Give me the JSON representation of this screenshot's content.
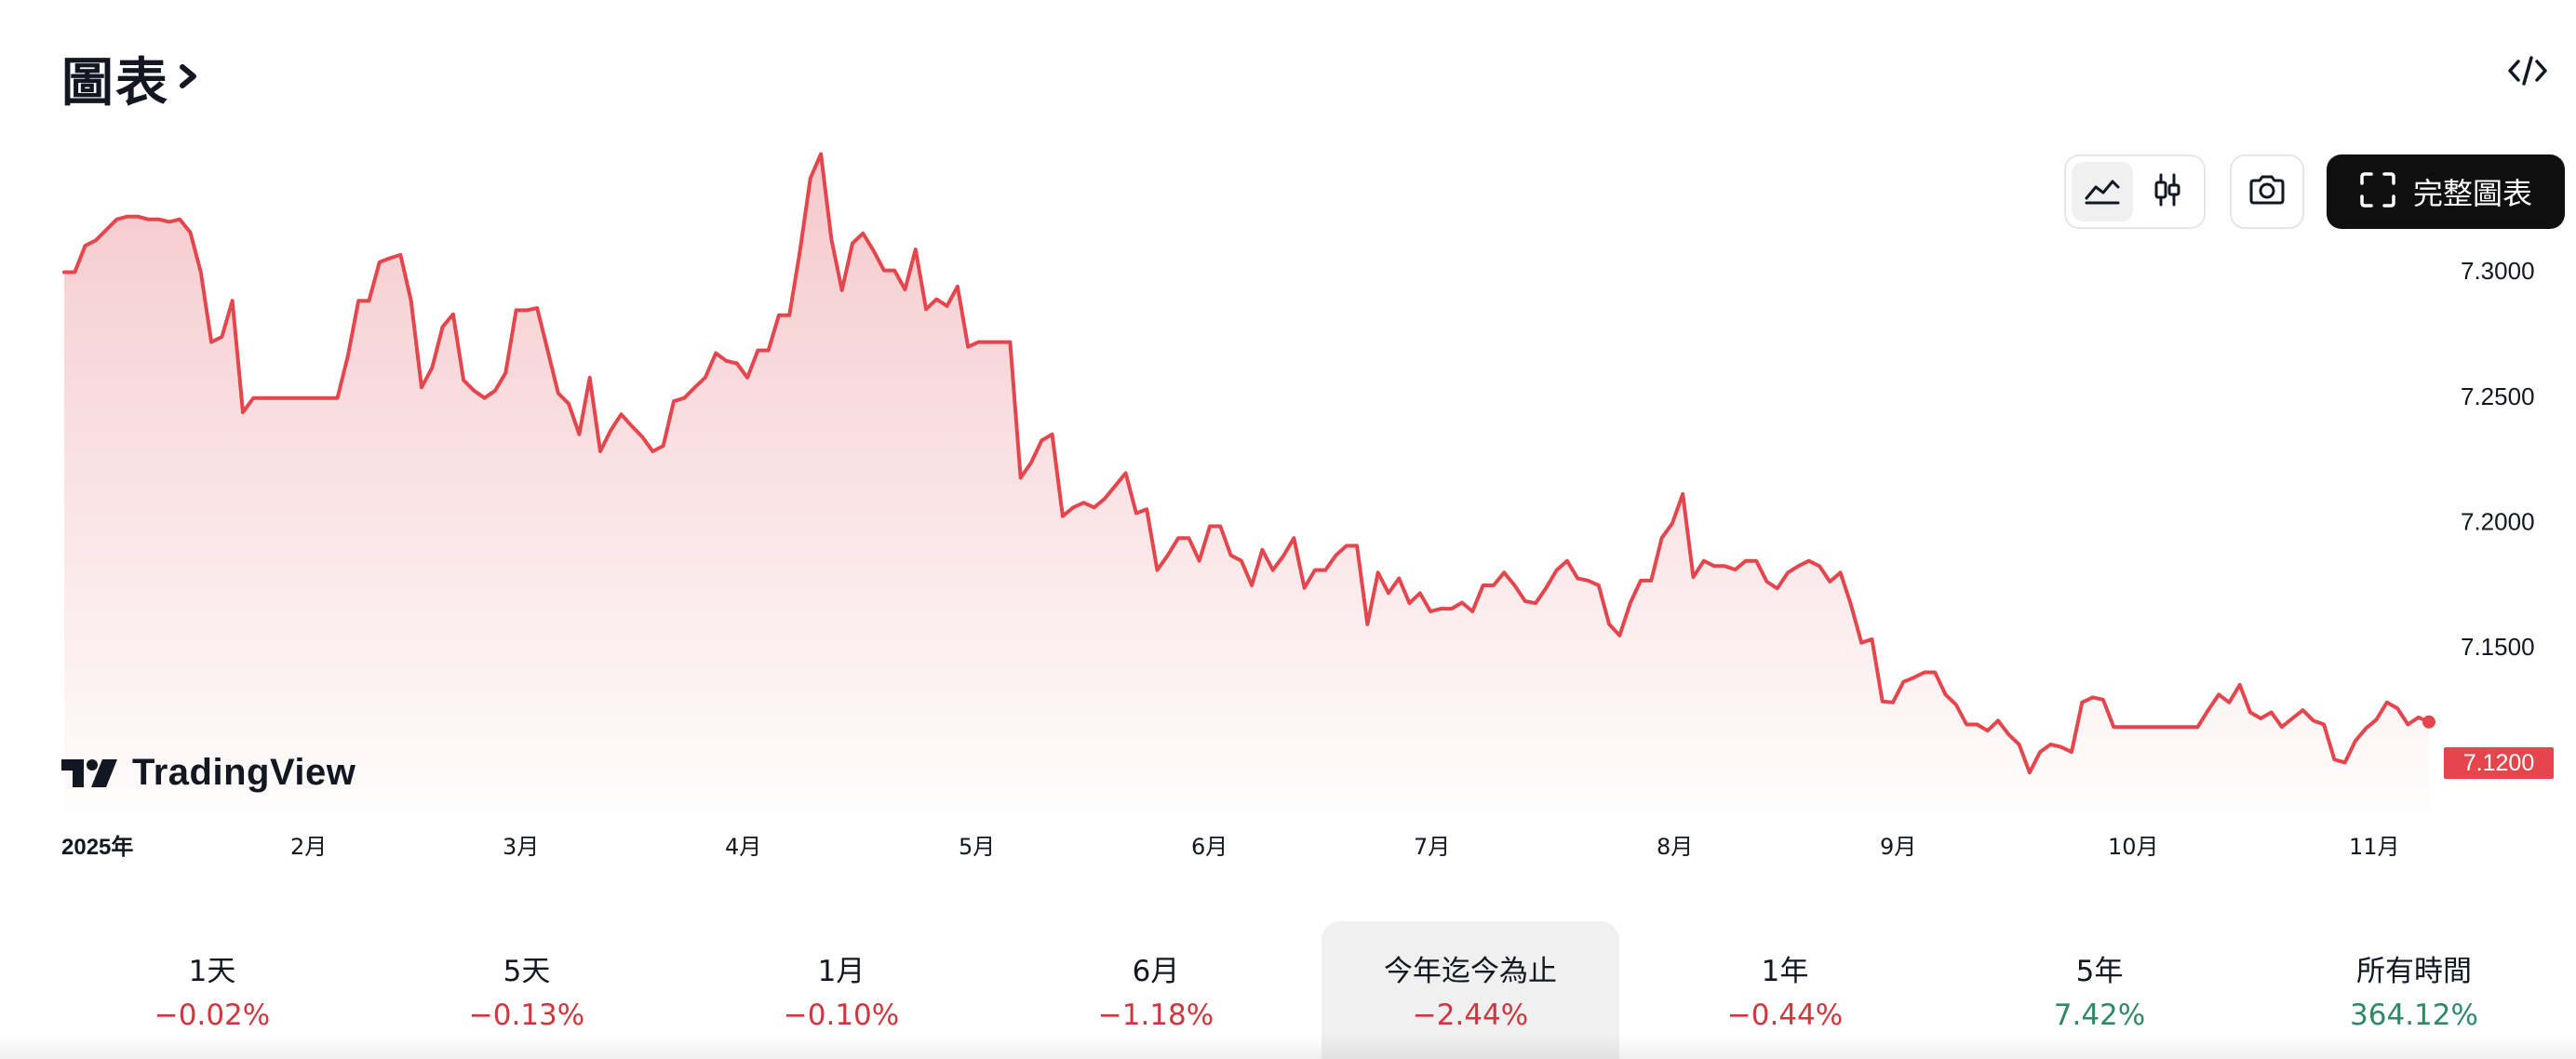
{
  "header": {
    "title": "圖表"
  },
  "toolbar": {
    "full_chart_label": "完整圖表"
  },
  "icons": {
    "title_chevron": "chevron-right-icon",
    "embed": "code-icon",
    "area_chart": "area-chart-icon",
    "candles": "candlestick-icon",
    "snapshot": "camera-icon",
    "full_chart": "fullscreen-icon"
  },
  "colors": {
    "line": "#e5454c",
    "fill_top": "#f5c9cc",
    "negative": "#d0363d",
    "positive": "#2e8a66",
    "button_dark": "#0f0f0f"
  },
  "branding": {
    "logo_text": "TradingView"
  },
  "chart_data": {
    "type": "area",
    "x_label": "",
    "y_label": "",
    "ylim": [
      7.085,
      7.345
    ],
    "x_ticks": [
      "2025年",
      "2月",
      "3月",
      "4月",
      "5月",
      "6月",
      "7月",
      "8月",
      "9月",
      "10月",
      "11月"
    ],
    "y_ticks": [
      "7.1500",
      "7.2000",
      "7.2500",
      "7.3000"
    ],
    "y_tick_values": [
      7.15,
      7.2,
      7.25,
      7.3
    ],
    "last_value_label": "7.1200",
    "grid": false,
    "series": [
      {
        "values": [
          7.2995,
          7.2995,
          7.3101,
          7.3122,
          7.3164,
          7.3206,
          7.3217,
          7.3217,
          7.3206,
          7.3206,
          7.3196,
          7.3206,
          7.3154,
          7.2995,
          7.2716,
          7.2737,
          7.2881,
          7.2436,
          7.2493,
          7.2493,
          7.2493,
          7.2493,
          7.2493,
          7.2493,
          7.2493,
          7.2493,
          7.2493,
          7.2662,
          7.2881,
          7.2881,
          7.3035,
          7.3051,
          7.3064,
          7.2881,
          7.2535,
          7.2613,
          7.2777,
          7.2827,
          7.2564,
          7.2522,
          7.2493,
          7.2522,
          7.2593,
          7.2843,
          7.2843,
          7.2852,
          7.2683,
          7.2512,
          7.247,
          7.2348,
          7.2574,
          7.228,
          7.2364,
          7.2428,
          7.2381,
          7.2338,
          7.228,
          7.2302,
          7.248,
          7.2493,
          7.2535,
          7.2575,
          7.2672,
          7.2641,
          7.2631,
          7.2574,
          7.2683,
          7.2683,
          7.2823,
          7.2823,
          7.3077,
          7.337,
          7.3467,
          7.3126,
          7.2923,
          7.311,
          7.315,
          7.3081,
          7.3002,
          7.3002,
          7.2926,
          7.3086,
          7.2847,
          7.2887,
          7.286,
          7.2938,
          7.2697,
          7.2716,
          7.2716,
          7.2716,
          7.2716,
          7.2174,
          7.2235,
          7.2323,
          7.2348,
          7.2021,
          7.2056,
          7.2075,
          7.2056,
          7.2091,
          7.2142,
          7.2193,
          7.2033,
          7.2049,
          7.1806,
          7.1865,
          7.1934,
          7.1934,
          7.1843,
          7.1981,
          7.1981,
          7.1865,
          7.1843,
          7.1745,
          7.1887,
          7.1806,
          7.1862,
          7.1934,
          7.1735,
          7.1806,
          7.1806,
          7.1865,
          7.1903,
          7.1903,
          7.159,
          7.1796,
          7.1714,
          7.1773,
          7.1674,
          7.1714,
          7.1641,
          7.1652,
          7.1652,
          7.1676,
          7.1641,
          7.1745,
          7.1745,
          7.1796,
          7.1745,
          7.1682,
          7.1674,
          7.1735,
          7.1806,
          7.1843,
          7.1773,
          7.1764,
          7.1745,
          7.159,
          7.1545,
          7.1674,
          7.1764,
          7.1764,
          7.1934,
          7.1992,
          7.211,
          7.1778,
          7.1843,
          7.1822,
          7.1822,
          7.1808,
          7.1843,
          7.1843,
          7.176,
          7.1733,
          7.1796,
          7.1822,
          7.1843,
          7.1822,
          7.176,
          7.1796,
          7.1668,
          7.1516,
          7.153,
          7.1282,
          7.1278,
          7.136,
          7.1377,
          7.1398,
          7.1398,
          7.1309,
          7.1269,
          7.119,
          7.119,
          7.1165,
          7.1205,
          7.115,
          7.111,
          7.0998,
          7.108,
          7.111,
          7.11,
          7.108,
          7.1278,
          7.1298,
          7.1289,
          7.118,
          7.118,
          7.118,
          7.118,
          7.118,
          7.118,
          7.118,
          7.118,
          7.118,
          7.1247,
          7.1309,
          7.1278,
          7.1348,
          7.1238,
          7.1214,
          7.1238,
          7.118,
          7.1214,
          7.1247,
          7.1205,
          7.119,
          7.105,
          7.1038,
          7.1124,
          7.1174,
          7.1209,
          7.1278,
          7.1254,
          7.119,
          7.1218,
          7.12
        ]
      }
    ]
  },
  "periods": [
    {
      "label": "1天",
      "value": "−0.02%",
      "dir": "neg"
    },
    {
      "label": "5天",
      "value": "−0.13%",
      "dir": "neg"
    },
    {
      "label": "1月",
      "value": "−0.10%",
      "dir": "neg"
    },
    {
      "label": "6月",
      "value": "−1.18%",
      "dir": "neg"
    },
    {
      "label": "今年迄今為止",
      "value": "−2.44%",
      "dir": "neg",
      "selected": true
    },
    {
      "label": "1年",
      "value": "−0.44%",
      "dir": "neg"
    },
    {
      "label": "5年",
      "value": "7.42%",
      "dir": "pos"
    },
    {
      "label": "所有時間",
      "value": "364.12%",
      "dir": "pos"
    }
  ]
}
